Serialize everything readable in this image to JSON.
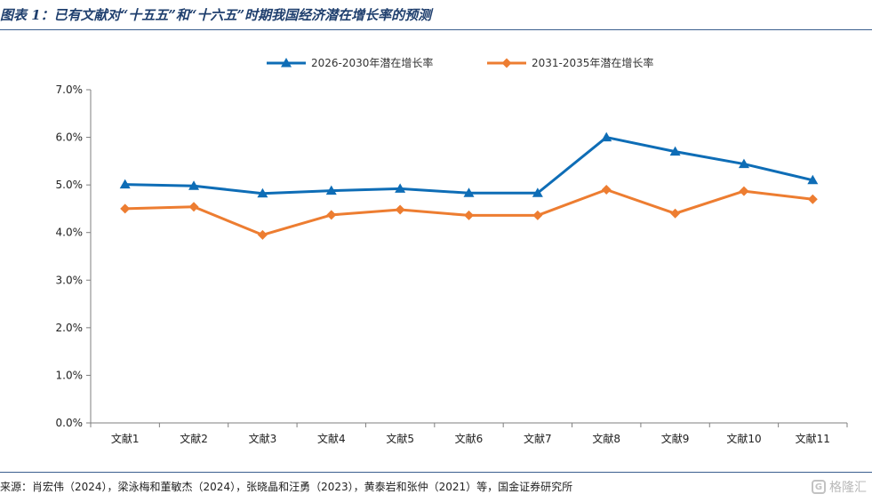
{
  "header": {
    "title": "图表 1：已有文献对“十五五”和“十六五”时期我国经济潜在增长率的预测"
  },
  "footer": {
    "source": "来源：肖宏伟（2024），梁泳梅和董敏杰（2024），张晓晶和汪勇（2023），黄泰岩和张仲（2021）等，国金证券研究所",
    "watermark": "格隆汇",
    "watermark_logo": "G"
  },
  "chart_data": {
    "type": "line",
    "categories": [
      "文献1",
      "文献2",
      "文献3",
      "文献4",
      "文献5",
      "文献6",
      "文献7",
      "文献8",
      "文献9",
      "文献10",
      "文献11"
    ],
    "series": [
      {
        "name": "2026-2030年潜在增长率",
        "color": "#0e6db6",
        "marker": "triangle",
        "values": [
          0.0501,
          0.0498,
          0.0482,
          0.0488,
          0.0492,
          0.0483,
          0.0483,
          0.06,
          0.057,
          0.0544,
          0.051
        ]
      },
      {
        "name": "2031-2035年潜在增长率",
        "color": "#ed7d31",
        "marker": "diamond",
        "values": [
          0.045,
          0.0454,
          0.0395,
          0.0437,
          0.0448,
          0.0436,
          0.0436,
          0.049,
          0.044,
          0.0487,
          0.047
        ]
      }
    ],
    "y_ticks": [
      "0.0%",
      "1.0%",
      "2.0%",
      "3.0%",
      "4.0%",
      "5.0%",
      "6.0%",
      "7.0%"
    ],
    "ylim": [
      0,
      0.07
    ],
    "grid": false,
    "legend_position": "top-center"
  }
}
